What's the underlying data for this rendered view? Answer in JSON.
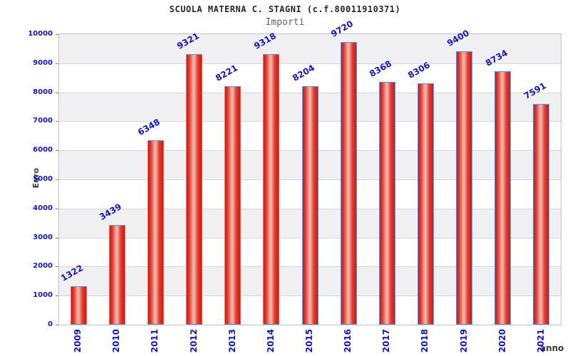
{
  "chart_data": {
    "type": "bar",
    "title": "SCUOLA MATERNA C. STAGNI (c.f.80011910371)",
    "subtitle": "Importi",
    "xlabel": "anno",
    "ylabel": "Euro",
    "categories": [
      "2009",
      "2010",
      "2011",
      "2012",
      "2013",
      "2014",
      "2015",
      "2016",
      "2017",
      "2018",
      "2019",
      "2020",
      "2021"
    ],
    "values": [
      1322,
      3439,
      6348,
      9321,
      8221,
      9318,
      8204,
      9720,
      8368,
      8306,
      9400,
      8734,
      7591
    ],
    "ylim": [
      0,
      10000
    ],
    "ytick_step": 1000,
    "yticks": [
      0,
      1000,
      2000,
      3000,
      4000,
      5000,
      6000,
      7000,
      8000,
      9000,
      10000
    ],
    "grid": "horizontal alternating bands, gridline each 1000",
    "legend": "none",
    "value_label_rotation_deg": -30,
    "xtick_label_rotation_deg": -90,
    "colors": {
      "label_blue": "#1414cc",
      "bar_border_blue": "#5599ee",
      "bar_red": "#dc1309",
      "bar_highlight": "#eeb9ad",
      "band_gray": "#f0f0f3",
      "band_white": "#ffffff",
      "gridline": "#d6d6d6",
      "plot_border": "#c2c2c2",
      "title_color": "#26262e",
      "subtitle_color": "#666666",
      "axis_title_color": "#3a3a3a"
    }
  }
}
